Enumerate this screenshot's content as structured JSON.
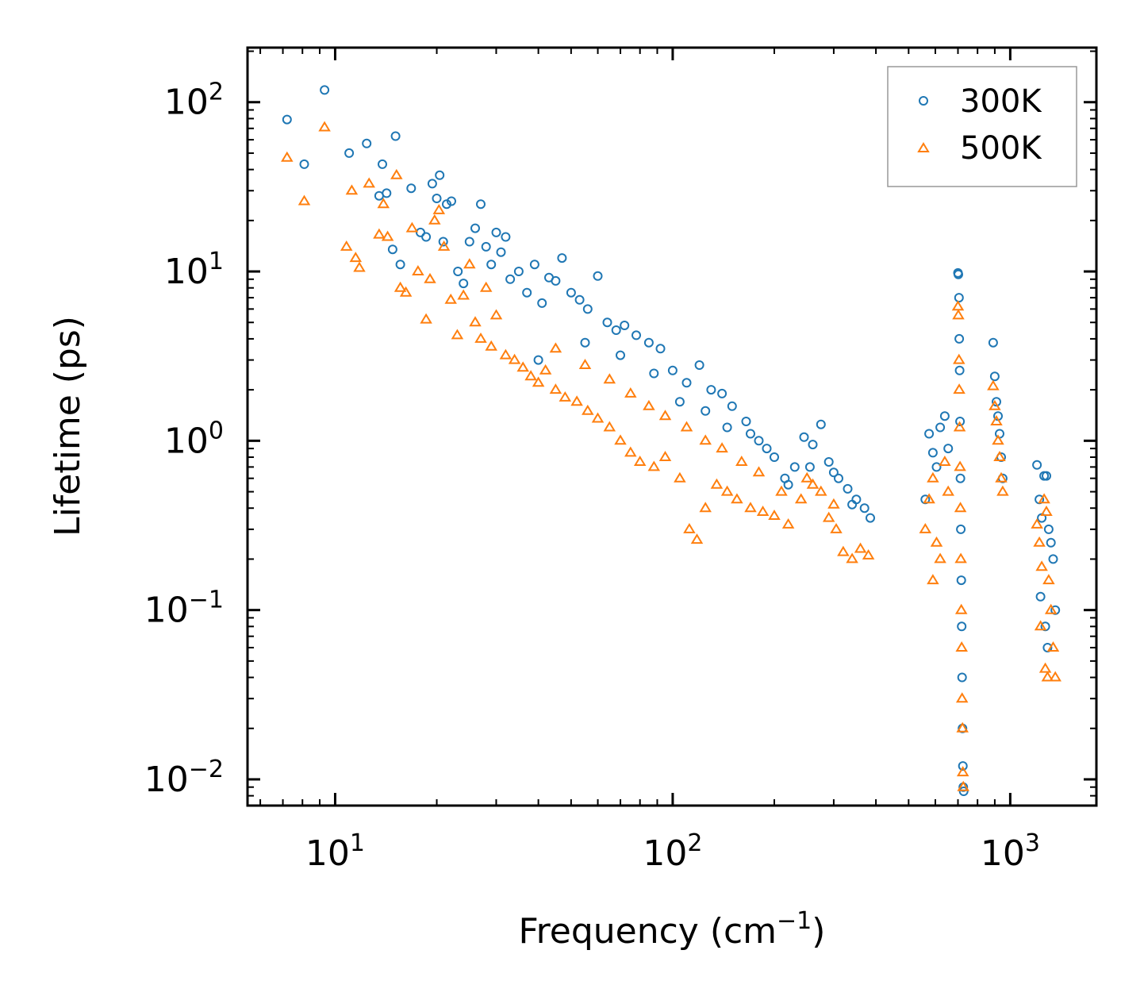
{
  "chart_data": {
    "type": "scatter",
    "title": "",
    "xlabel": "Frequency (cm",
    "xlabel_sup": "−1",
    "xlabel_end": ")",
    "ylabel": "Lifetime (ps)",
    "xscale": "log",
    "yscale": "log",
    "xlim": [
      5.5,
      1800
    ],
    "ylim": [
      0.007,
      210
    ],
    "x_ticks": [
      {
        "value": 10,
        "base": "10",
        "exp": "1"
      },
      {
        "value": 100,
        "base": "10",
        "exp": "2"
      },
      {
        "value": 1000,
        "base": "10",
        "exp": "3"
      }
    ],
    "y_ticks": [
      {
        "value": 0.01,
        "base": "10",
        "exp": "−2"
      },
      {
        "value": 0.1,
        "base": "10",
        "exp": "−1"
      },
      {
        "value": 1,
        "base": "10",
        "exp": "0"
      },
      {
        "value": 10,
        "base": "10",
        "exp": "1"
      },
      {
        "value": 100,
        "base": "10",
        "exp": "2"
      }
    ],
    "legend_position": "top-right",
    "series": [
      {
        "name": "300K",
        "marker": "circle",
        "color": "#1f77b4",
        "points": [
          [
            7.2,
            79
          ],
          [
            8.1,
            43
          ],
          [
            9.3,
            118
          ],
          [
            11,
            50
          ],
          [
            12.4,
            57
          ],
          [
            13.5,
            28
          ],
          [
            13.8,
            43
          ],
          [
            14.2,
            29
          ],
          [
            14.8,
            13.5
          ],
          [
            15.1,
            63
          ],
          [
            15.6,
            11
          ],
          [
            16.8,
            31
          ],
          [
            17.9,
            17
          ],
          [
            18.6,
            16
          ],
          [
            19.4,
            33
          ],
          [
            20,
            27
          ],
          [
            20.4,
            37
          ],
          [
            20.9,
            15
          ],
          [
            21.4,
            25
          ],
          [
            22.1,
            26
          ],
          [
            23.1,
            10
          ],
          [
            24,
            8.5
          ],
          [
            25,
            15
          ],
          [
            26,
            18
          ],
          [
            27,
            25
          ],
          [
            28,
            14
          ],
          [
            29,
            11
          ],
          [
            30,
            17
          ],
          [
            31,
            13
          ],
          [
            32,
            16
          ],
          [
            33,
            9
          ],
          [
            35,
            10
          ],
          [
            37,
            7.5
          ],
          [
            39,
            11
          ],
          [
            41,
            6.5
          ],
          [
            43,
            9.2
          ],
          [
            45,
            8.8
          ],
          [
            47,
            12
          ],
          [
            50,
            7.5
          ],
          [
            53,
            6.8
          ],
          [
            56,
            6
          ],
          [
            60,
            9.4
          ],
          [
            64,
            5
          ],
          [
            68,
            4.5
          ],
          [
            72,
            4.8
          ],
          [
            78,
            4.2
          ],
          [
            85,
            3.8
          ],
          [
            92,
            3.5
          ],
          [
            100,
            2.6
          ],
          [
            110,
            2.2
          ],
          [
            120,
            2.8
          ],
          [
            130,
            2.0
          ],
          [
            140,
            1.9
          ],
          [
            150,
            1.6
          ],
          [
            165,
            1.3
          ],
          [
            180,
            1.0
          ],
          [
            200,
            0.8
          ],
          [
            215,
            0.6
          ],
          [
            230,
            0.7
          ],
          [
            245,
            1.05
          ],
          [
            260,
            0.95
          ],
          [
            275,
            1.25
          ],
          [
            290,
            0.75
          ],
          [
            310,
            0.6
          ],
          [
            330,
            0.52
          ],
          [
            350,
            0.45
          ],
          [
            370,
            0.4
          ],
          [
            385,
            0.35
          ],
          [
            40,
            3
          ],
          [
            55,
            3.8
          ],
          [
            70,
            3.2
          ],
          [
            88,
            2.5
          ],
          [
            105,
            1.7
          ],
          [
            125,
            1.5
          ],
          [
            145,
            1.2
          ],
          [
            170,
            1.1
          ],
          [
            190,
            0.9
          ],
          [
            220,
            0.55
          ],
          [
            255,
            0.7
          ],
          [
            300,
            0.65
          ],
          [
            340,
            0.42
          ],
          [
            560,
            0.45
          ],
          [
            575,
            1.1
          ],
          [
            590,
            0.85
          ],
          [
            605,
            0.7
          ],
          [
            620,
            1.2
          ],
          [
            640,
            1.4
          ],
          [
            655,
            0.9
          ],
          [
            700,
            9.8
          ],
          [
            702,
            9.6
          ],
          [
            705,
            7
          ],
          [
            706,
            4
          ],
          [
            708,
            2.6
          ],
          [
            710,
            1.3
          ],
          [
            712,
            0.6
          ],
          [
            714,
            0.3
          ],
          [
            716,
            0.15
          ],
          [
            718,
            0.08
          ],
          [
            720,
            0.04
          ],
          [
            722,
            0.02
          ],
          [
            724,
            0.012
          ],
          [
            726,
            0.009
          ],
          [
            728,
            0.0085
          ],
          [
            890,
            3.8
          ],
          [
            900,
            2.4
          ],
          [
            910,
            1.7
          ],
          [
            920,
            1.4
          ],
          [
            930,
            1.1
          ],
          [
            940,
            0.8
          ],
          [
            950,
            0.6
          ],
          [
            1200,
            0.72
          ],
          [
            1220,
            0.45
          ],
          [
            1240,
            0.35
          ],
          [
            1260,
            0.62
          ],
          [
            1280,
            0.62
          ],
          [
            1300,
            0.3
          ],
          [
            1320,
            0.25
          ],
          [
            1340,
            0.2
          ],
          [
            1360,
            0.1
          ],
          [
            1230,
            0.12
          ],
          [
            1270,
            0.08
          ],
          [
            1290,
            0.06
          ]
        ]
      },
      {
        "name": "500K",
        "marker": "triangle",
        "color": "#ff7f0e",
        "points": [
          [
            7.2,
            47
          ],
          [
            8.1,
            26
          ],
          [
            9.3,
            71
          ],
          [
            10.8,
            14
          ],
          [
            11.2,
            30
          ],
          [
            11.5,
            12
          ],
          [
            11.8,
            10.5
          ],
          [
            12.6,
            33
          ],
          [
            13.5,
            16.5
          ],
          [
            13.9,
            25
          ],
          [
            14.3,
            16
          ],
          [
            15.2,
            37
          ],
          [
            15.6,
            8
          ],
          [
            16.2,
            7.5
          ],
          [
            16.9,
            18
          ],
          [
            17.6,
            10
          ],
          [
            18.6,
            5.2
          ],
          [
            19.1,
            9
          ],
          [
            19.7,
            20
          ],
          [
            20.3,
            23
          ],
          [
            21,
            14
          ],
          [
            22,
            6.8
          ],
          [
            23,
            4.2
          ],
          [
            24,
            7.2
          ],
          [
            25,
            11
          ],
          [
            26,
            5
          ],
          [
            27,
            4
          ],
          [
            28,
            8
          ],
          [
            29,
            3.6
          ],
          [
            30,
            5.5
          ],
          [
            32,
            3.2
          ],
          [
            34,
            3
          ],
          [
            36,
            2.7
          ],
          [
            38,
            2.4
          ],
          [
            40,
            2.2
          ],
          [
            42,
            2.6
          ],
          [
            45,
            2
          ],
          [
            48,
            1.8
          ],
          [
            52,
            1.7
          ],
          [
            56,
            1.5
          ],
          [
            60,
            1.35
          ],
          [
            65,
            1.2
          ],
          [
            70,
            1.0
          ],
          [
            75,
            0.85
          ],
          [
            80,
            0.75
          ],
          [
            88,
            0.7
          ],
          [
            95,
            0.8
          ],
          [
            105,
            0.6
          ],
          [
            112,
            0.3
          ],
          [
            118,
            0.26
          ],
          [
            125,
            0.4
          ],
          [
            135,
            0.55
          ],
          [
            145,
            0.5
          ],
          [
            155,
            0.45
          ],
          [
            170,
            0.4
          ],
          [
            185,
            0.38
          ],
          [
            200,
            0.36
          ],
          [
            220,
            0.32
          ],
          [
            240,
            0.45
          ],
          [
            260,
            0.55
          ],
          [
            275,
            0.5
          ],
          [
            290,
            0.35
          ],
          [
            305,
            0.3
          ],
          [
            320,
            0.22
          ],
          [
            340,
            0.2
          ],
          [
            360,
            0.23
          ],
          [
            380,
            0.21
          ],
          [
            45,
            3.5
          ],
          [
            55,
            2.8
          ],
          [
            65,
            2.3
          ],
          [
            75,
            1.9
          ],
          [
            85,
            1.6
          ],
          [
            95,
            1.4
          ],
          [
            110,
            1.2
          ],
          [
            125,
            1.0
          ],
          [
            140,
            0.9
          ],
          [
            160,
            0.75
          ],
          [
            180,
            0.65
          ],
          [
            210,
            0.5
          ],
          [
            250,
            0.6
          ],
          [
            300,
            0.42
          ],
          [
            560,
            0.3
          ],
          [
            575,
            0.45
          ],
          [
            590,
            0.6
          ],
          [
            605,
            0.25
          ],
          [
            620,
            0.2
          ],
          [
            640,
            0.75
          ],
          [
            655,
            0.5
          ],
          [
            590,
            0.15
          ],
          [
            700,
            6.2
          ],
          [
            702,
            5.5
          ],
          [
            705,
            3
          ],
          [
            706,
            2
          ],
          [
            708,
            1.2
          ],
          [
            710,
            0.7
          ],
          [
            712,
            0.4
          ],
          [
            714,
            0.2
          ],
          [
            716,
            0.1
          ],
          [
            718,
            0.06
          ],
          [
            720,
            0.03
          ],
          [
            722,
            0.02
          ],
          [
            724,
            0.011
          ],
          [
            726,
            0.009
          ],
          [
            890,
            2.1
          ],
          [
            900,
            1.6
          ],
          [
            910,
            1.3
          ],
          [
            920,
            1.0
          ],
          [
            930,
            0.8
          ],
          [
            940,
            0.6
          ],
          [
            950,
            0.5
          ],
          [
            1200,
            0.32
          ],
          [
            1220,
            0.25
          ],
          [
            1240,
            0.18
          ],
          [
            1260,
            0.45
          ],
          [
            1280,
            0.38
          ],
          [
            1300,
            0.15
          ],
          [
            1320,
            0.1
          ],
          [
            1340,
            0.06
          ],
          [
            1230,
            0.08
          ],
          [
            1270,
            0.045
          ],
          [
            1290,
            0.04
          ],
          [
            1360,
            0.04
          ]
        ]
      }
    ]
  }
}
